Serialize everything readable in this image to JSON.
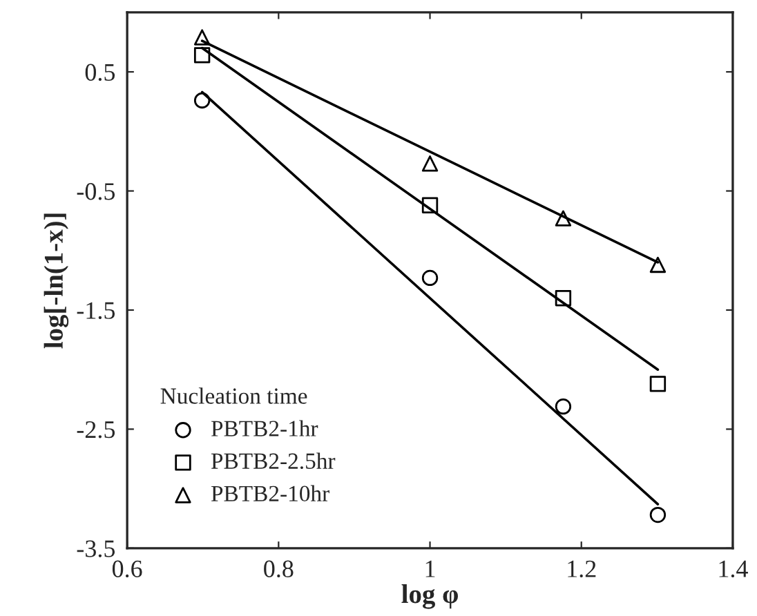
{
  "chart_data": {
    "type": "scatter",
    "xlabel": "log φ",
    "ylabel": "log[-ln(1-x)]",
    "legend_title": "Nucleation time",
    "legend": "bottom left",
    "grid": false,
    "xlim": [
      0.6,
      1.4
    ],
    "xticks": [
      0.6,
      0.8,
      1,
      1.2,
      1.4
    ],
    "ylim": [
      -3.5,
      1.0
    ],
    "yticks": [
      -3.5,
      -2.5,
      -1.5,
      -0.5,
      0.5
    ],
    "series": [
      {
        "name": "PBTB2-1hr",
        "marker": "circle",
        "color": "#000000",
        "x": [
          0.699,
          1.0,
          1.176,
          1.301
        ],
        "values": [
          0.26,
          -1.23,
          -2.31,
          -3.22
        ]
      },
      {
        "name": "PBTB2-2.5hr",
        "marker": "square",
        "color": "#000000",
        "x": [
          0.699,
          1.0,
          1.176,
          1.301
        ],
        "values": [
          0.64,
          -0.62,
          -1.4,
          -2.12
        ]
      },
      {
        "name": "PBTB2-10hr",
        "marker": "triangle",
        "color": "#000000",
        "x": [
          0.699,
          1.0,
          1.176,
          1.301
        ],
        "values": [
          0.79,
          -0.27,
          -0.73,
          -1.12
        ]
      },
      {
        "type": "line",
        "color": "#000000",
        "x": [
          0.699,
          1.301
        ],
        "values": [
          0.33,
          -3.13
        ]
      },
      {
        "type": "line",
        "color": "#000000",
        "x": [
          0.699,
          1.301
        ],
        "values": [
          0.7,
          -2.0
        ]
      },
      {
        "type": "line",
        "color": "#000000",
        "x": [
          0.699,
          1.301
        ],
        "values": [
          0.76,
          -1.1
        ]
      }
    ]
  }
}
